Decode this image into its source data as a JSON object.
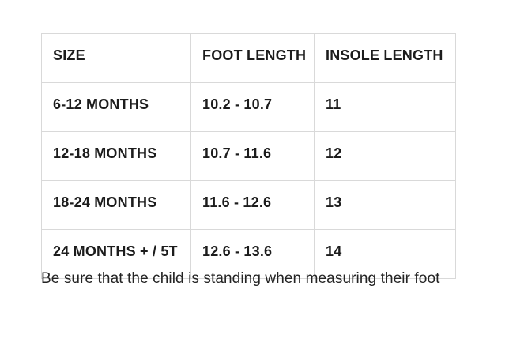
{
  "colors": {
    "background": "#ffffff",
    "table_border": "#d9d9d9",
    "cell_text": "#1c1c1c",
    "note_text": "#242424"
  },
  "table": {
    "columns": [
      "SIZE",
      "FOOT LENGTH",
      "INSOLE LENGTH"
    ],
    "rows": [
      {
        "size": "6-12 MONTHS",
        "foot_length": "10.2 - 10.7",
        "insole_length": "11"
      },
      {
        "size": "12-18 MONTHS",
        "foot_length": "10.7 - 11.6",
        "insole_length": "12"
      },
      {
        "size": "18-24 MONTHS",
        "foot_length": "11.6 - 12.6",
        "insole_length": "13"
      },
      {
        "size": "24 MONTHS + / 5T",
        "foot_length": "12.6 - 13.6",
        "insole_length": "14"
      }
    ]
  },
  "note": "Be sure that the child is standing when measuring their foot",
  "chart_data": {
    "type": "table",
    "columns": [
      "SIZE",
      "FOOT LENGTH",
      "INSOLE LENGTH"
    ],
    "rows": [
      [
        "6-12 MONTHS",
        "10.2 - 10.7",
        "11"
      ],
      [
        "12-18 MONTHS",
        "10.7 - 11.6",
        "12"
      ],
      [
        "18-24 MONTHS",
        "11.6 - 12.6",
        "13"
      ],
      [
        "24 MONTHS + / 5T",
        "12.6 - 13.6",
        "14"
      ]
    ]
  }
}
